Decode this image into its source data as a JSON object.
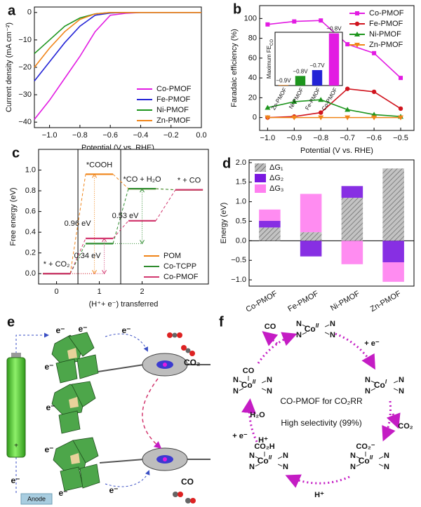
{
  "chart_data": [
    {
      "label": "a",
      "type": "line",
      "xlabel": "Potential (V vs. RHE)",
      "ylabel": "Current density (mA cm⁻²)",
      "x": [
        -1.1,
        -1.0,
        -0.9,
        -0.8,
        -0.7,
        -0.6,
        -0.5,
        -0.4,
        -0.2,
        0.0
      ],
      "series": [
        {
          "name": "Co-PMOF",
          "color": "#e21be2",
          "values": [
            -39,
            -32,
            -24,
            -16,
            -7,
            -1,
            -0.3,
            0,
            0,
            0
          ]
        },
        {
          "name": "Fe-PMOF",
          "color": "#2323d6",
          "values": [
            -25,
            -18,
            -11,
            -5,
            -1,
            -0.2,
            0,
            0,
            0,
            0
          ]
        },
        {
          "name": "Ni-PMOF",
          "color": "#1d951d",
          "values": [
            -15,
            -10,
            -5,
            -2,
            -0.5,
            0,
            0,
            0,
            0,
            0
          ]
        },
        {
          "name": "Zn-PMOF",
          "color": "#f08418",
          "values": [
            -20,
            -13,
            -7,
            -2.5,
            -0.5,
            0,
            0,
            0,
            0,
            0
          ]
        }
      ],
      "xlim": [
        -1.1,
        0.0
      ],
      "ylim": [
        -42,
        2
      ],
      "xticks": [
        {
          "value": -1.0,
          "label": "−1.0"
        },
        {
          "value": -0.8,
          "label": "−0.8"
        },
        {
          "value": -0.6,
          "label": "−0.6"
        },
        {
          "value": -0.4,
          "label": "−0.4"
        },
        {
          "value": -0.2,
          "label": "−0.2"
        },
        {
          "value": 0,
          "label": "0.0"
        }
      ],
      "yticks": [
        0,
        {
          "value": -10,
          "label": "−10"
        },
        {
          "value": -20,
          "label": "−20"
        },
        {
          "value": -30,
          "label": "−30"
        },
        {
          "value": -40,
          "label": "−40"
        }
      ],
      "legend": "lower right"
    },
    {
      "label": "b",
      "type": "line",
      "xlabel": "Potential (V vs. RHE)",
      "ylabel": "Faradaic efficiency (%)",
      "x": [
        -1.0,
        -0.9,
        -0.8,
        -0.7,
        -0.6,
        -0.5
      ],
      "series": [
        {
          "name": "Co-PMOF",
          "color": "#e21be2",
          "marker": "square",
          "values": [
            94,
            97,
            98,
            74,
            65,
            40
          ]
        },
        {
          "name": "Fe-PMOF",
          "color": "#d0141e",
          "marker": "circle",
          "values": [
            0,
            1,
            5,
            29,
            26,
            9
          ]
        },
        {
          "name": "Ni-PMOF",
          "color": "#1d951d",
          "marker": "triangle-up",
          "values": [
            10,
            16,
            18,
            8,
            3,
            1
          ]
        },
        {
          "name": "Zn-PMOF",
          "color": "#f08418",
          "marker": "triangle-down",
          "values": [
            0,
            0,
            0,
            0,
            0,
            0
          ]
        }
      ],
      "xlim": [
        -1.03,
        -0.45
      ],
      "ylim": [
        -13,
        113
      ],
      "xticks": [
        {
          "value": -1.0,
          "label": "−1.0"
        },
        {
          "value": -0.9,
          "label": "−0.9"
        },
        {
          "value": -0.8,
          "label": "−0.8"
        },
        {
          "value": -0.7,
          "label": "−0.7"
        },
        {
          "value": -0.6,
          "label": "−0.6"
        },
        {
          "value": -0.5,
          "label": "−0.5"
        }
      ],
      "yticks": [
        0,
        20,
        40,
        60,
        80,
        100
      ],
      "legend": "upper right"
    },
    {
      "type": "bar",
      "ylabel": "Maximum FE",
      "ylabel_sub": "CO",
      "categories": [
        "Zn-PMOF",
        "Ni-PMOF",
        "Fe-PMOF",
        "Co-PMOF"
      ],
      "values": [
        1,
        18,
        29,
        98
      ],
      "colors": [
        "#f08418",
        "#1d951d",
        "#2323d6",
        "#e21be2"
      ],
      "annotations": [
        "−0.9V",
        "−0.8V",
        "−0.7V",
        "−0.8V"
      ],
      "ylim": [
        0,
        100
      ]
    },
    {
      "label": "c",
      "type": "energy",
      "xlabel": "(H⁺+ e⁻) transferred",
      "ylabel": "Free energy (eV)",
      "x": [
        0,
        1,
        2,
        3.1
      ],
      "level_labels": [
        "* + CO₂",
        "*COOH",
        "*CO + H₂O",
        "* + CO"
      ],
      "series": [
        {
          "name": "POM",
          "color": "#f08418",
          "values": [
            0,
            0.96,
            0.82,
            0.81
          ],
          "barrier_label": "0.96 eV"
        },
        {
          "name": "Co-TCPP",
          "color": "#2e8b2e",
          "values": [
            0,
            0.29,
            0.82,
            0.81
          ],
          "barrier_label": "0.53 eV"
        },
        {
          "name": "Co-PMOF",
          "color": "#d2386f",
          "values": [
            0,
            0.34,
            0.51,
            0.81
          ],
          "barrier_label": "0.34 eV"
        }
      ],
      "xlim": [
        -0.42,
        3.55
      ],
      "ylim": [
        -0.1,
        1.2
      ],
      "xticks": [
        0,
        1,
        2
      ],
      "yticks": [
        {
          "value": 0,
          "label": "0.0"
        },
        0.2,
        0.4,
        0.6,
        0.8,
        {
          "value": 1.0,
          "label": "1.0"
        }
      ],
      "legend": "lower right"
    },
    {
      "label": "d",
      "type": "stacked-bar",
      "ylabel": "Energy (eV)",
      "categories": [
        "Co-PMOF",
        "Fe-PMOF",
        "Ni-PMOF",
        "Zn-PMOF"
      ],
      "series": [
        {
          "name": "ΔG₁",
          "color": "#bdbdbd",
          "hatch": true,
          "values": [
            0.34,
            0.22,
            1.1,
            1.85
          ]
        },
        {
          "name": "ΔG₂",
          "color": "#7a18e0",
          "values": [
            0.17,
            -0.4,
            0.3,
            -0.55
          ]
        },
        {
          "name": "ΔG₃",
          "color": "#ff7ff0",
          "values": [
            0.29,
            0.98,
            -0.6,
            -0.5
          ]
        }
      ],
      "ylim": [
        -1.16,
        2.07
      ],
      "yticks": [
        {
          "value": -1.0,
          "label": "−1.0"
        },
        {
          "value": -0.5,
          "label": "−0.5"
        },
        {
          "value": 0,
          "label": "0.0"
        },
        0.5,
        {
          "value": 1.0,
          "label": "1.0"
        },
        1.5,
        {
          "value": 2.0,
          "label": "2.0"
        }
      ],
      "legend": "upper left"
    }
  ],
  "panel_e": {
    "label": "e",
    "electron": "e⁻",
    "co2": "CO₂",
    "co": "CO",
    "anode": "Anode",
    "battery_sign": "+"
  },
  "panel_f": {
    "label": "f",
    "title": "CO-PMOF for CO₂RR",
    "subtitle": "High selectivity (99%)",
    "ligand": "N",
    "metal": "Co",
    "species": [
      {
        "oxidation": "II"
      },
      {
        "oxidation": "I"
      },
      {
        "axial": "CO₂⁻",
        "oxidation": "II"
      },
      {
        "axial": "CO₂H",
        "oxidation": "II"
      },
      {
        "axial": "CO",
        "oxidation": "II"
      }
    ],
    "steps": [
      "+ e⁻",
      "CO₂",
      "H⁺",
      "H₂O",
      "+ e⁻",
      "H⁺",
      "CO"
    ]
  }
}
